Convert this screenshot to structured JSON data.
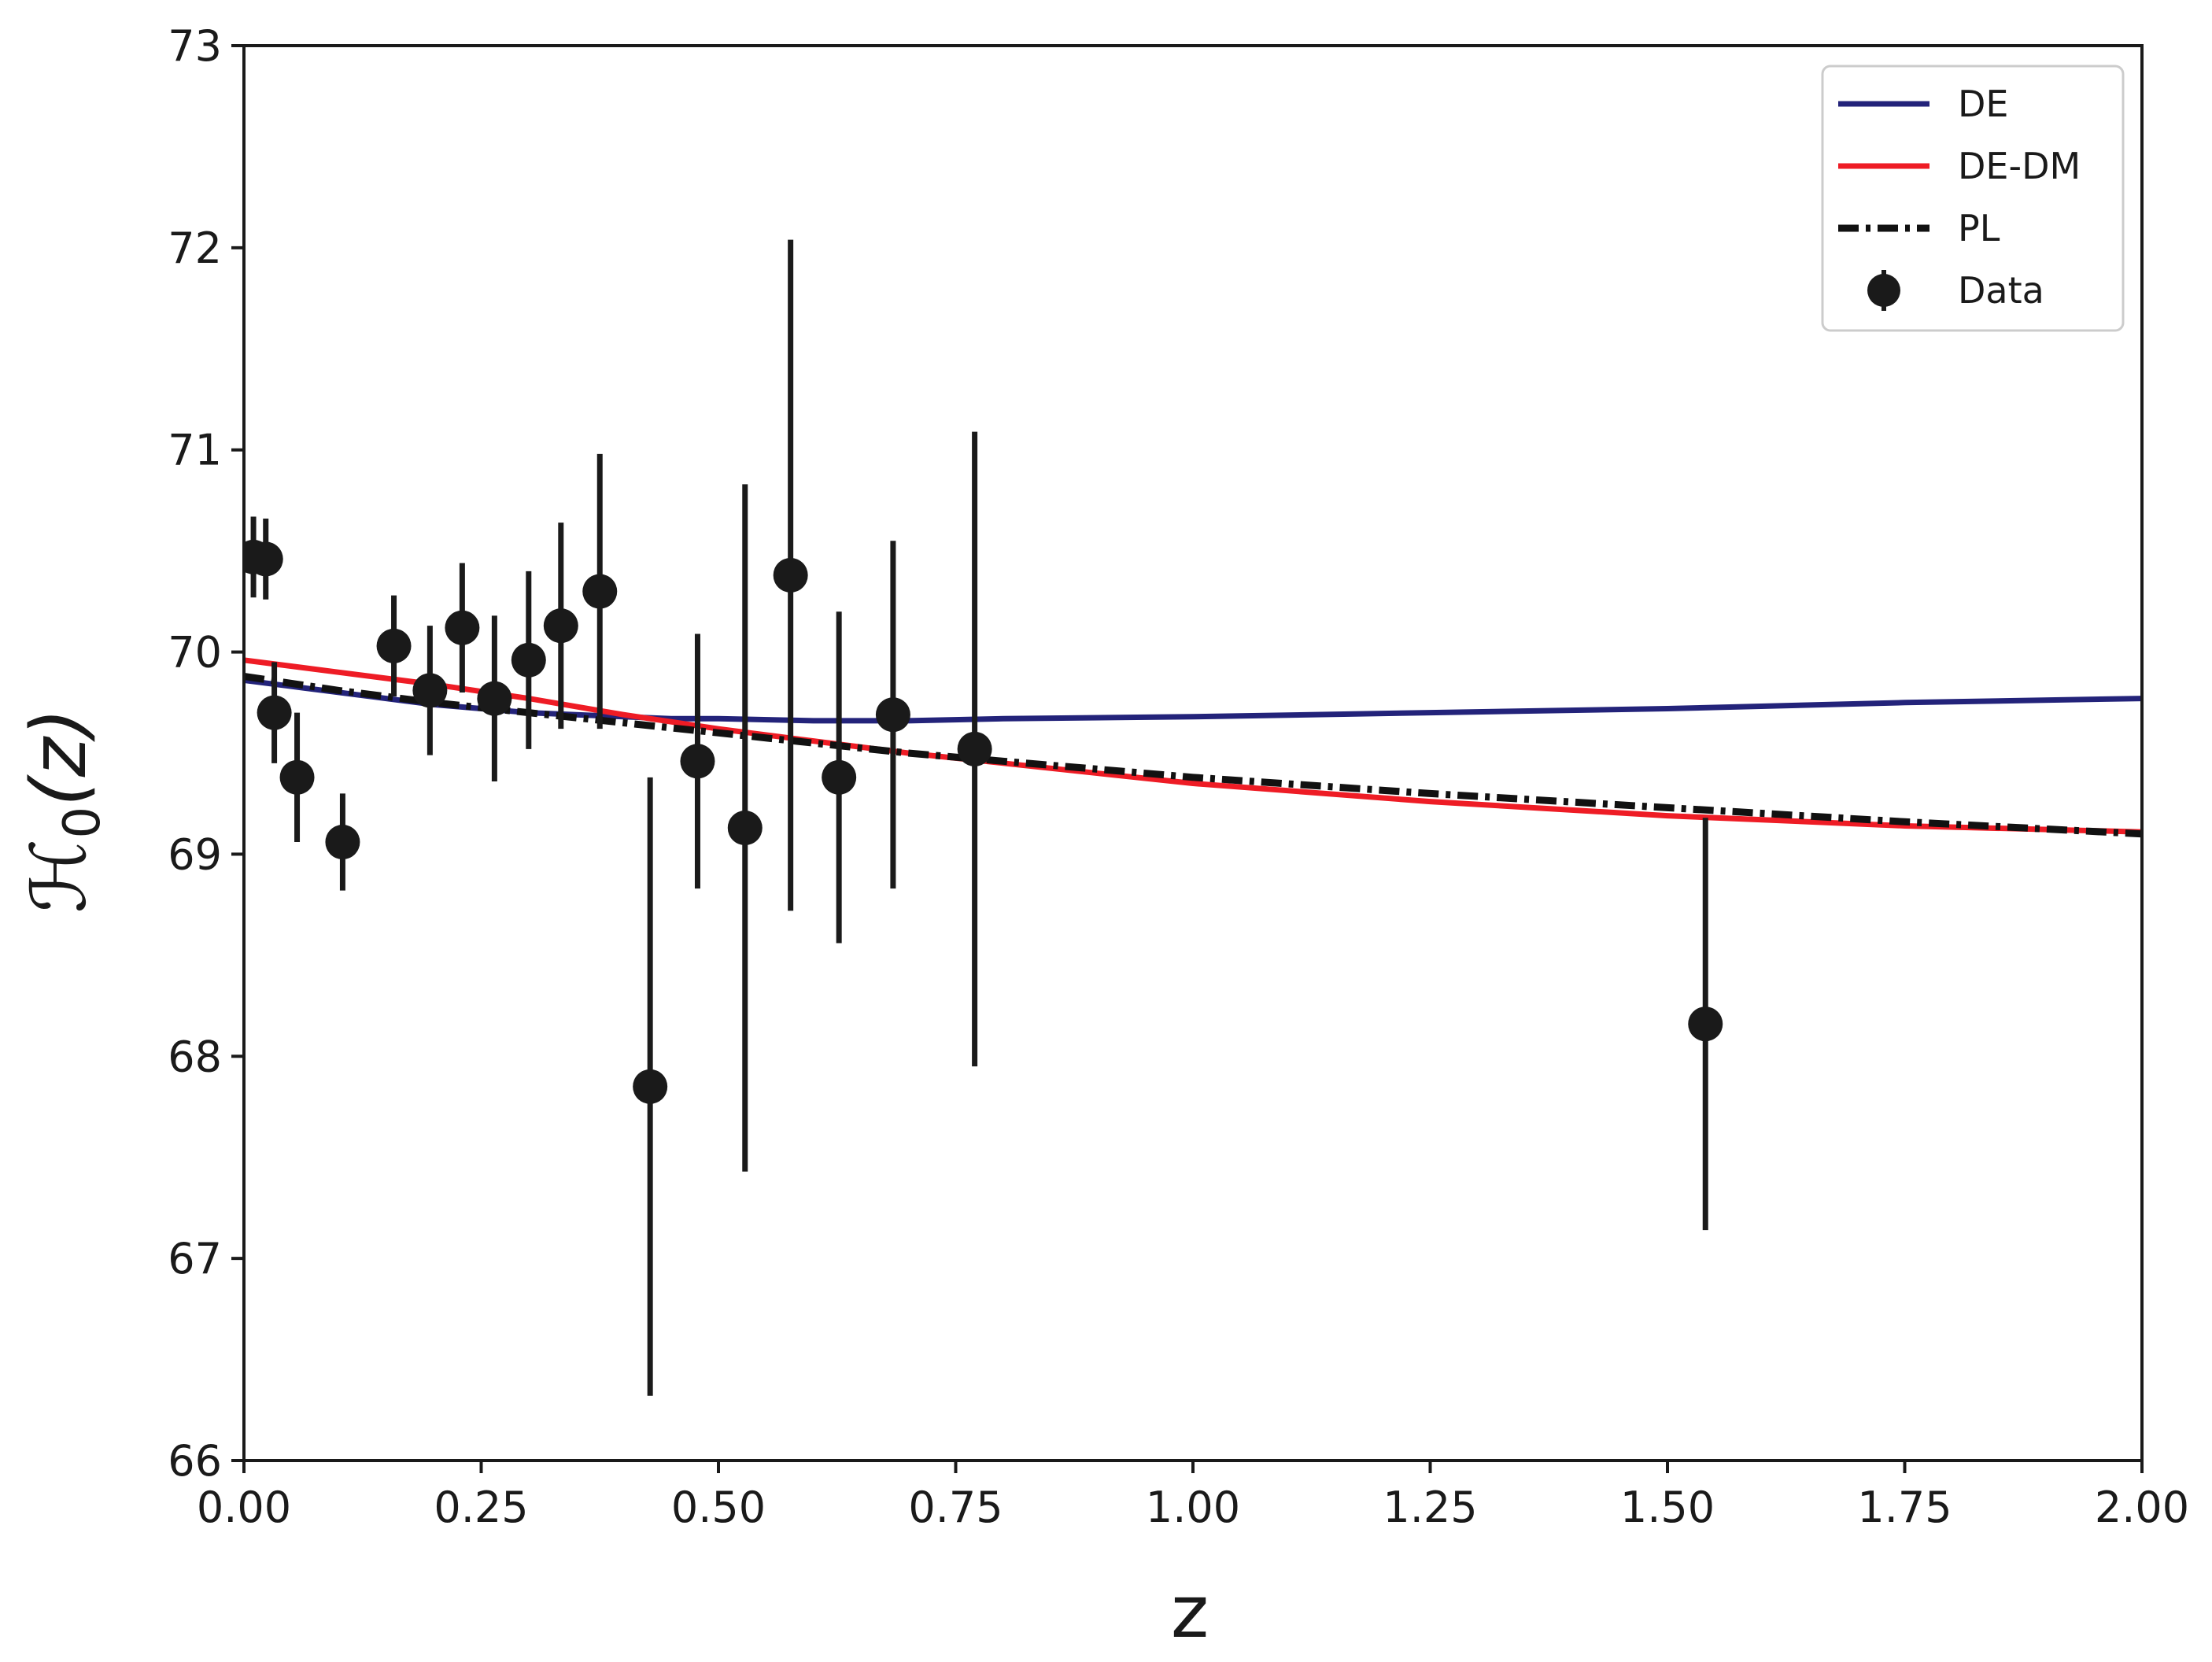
{
  "chart_data": {
    "type": "scatter",
    "title": "",
    "xlabel": "z",
    "ylabel": "ℋ",
    "ylabel_sub": "0",
    "ylabel_arg": "(z)",
    "xlim": [
      0.0,
      2.0
    ],
    "ylim": [
      66,
      73
    ],
    "xticks": [
      0.0,
      0.25,
      0.5,
      0.75,
      1.0,
      1.25,
      1.5,
      1.75,
      2.0
    ],
    "xtick_labels": [
      "0.00",
      "0.25",
      "0.50",
      "0.75",
      "1.00",
      "1.25",
      "1.50",
      "1.75",
      "2.00"
    ],
    "yticks": [
      66,
      67,
      68,
      69,
      70,
      71,
      72,
      73
    ],
    "ytick_labels": [
      "66",
      "67",
      "68",
      "69",
      "70",
      "71",
      "72",
      "73"
    ],
    "grid": false,
    "legend_position": "top-right",
    "series": [
      {
        "name": "DE",
        "kind": "line",
        "color": "#23237a",
        "x": [
          0.0,
          0.05,
          0.1,
          0.15,
          0.2,
          0.25,
          0.3,
          0.35,
          0.4,
          0.45,
          0.5,
          0.6,
          0.7,
          0.8,
          1.0,
          1.25,
          1.5,
          1.75,
          2.0
        ],
        "y": [
          69.86,
          69.83,
          69.8,
          69.77,
          69.74,
          69.72,
          69.7,
          69.69,
          69.68,
          69.67,
          69.67,
          69.66,
          69.66,
          69.67,
          69.68,
          69.7,
          69.72,
          69.75,
          69.77
        ]
      },
      {
        "name": "DE-DM",
        "kind": "line",
        "color": "#ee1c25",
        "x": [
          0.0,
          0.1,
          0.2,
          0.3,
          0.4,
          0.5,
          0.6,
          0.7,
          0.8,
          0.9,
          1.0,
          1.25,
          1.5,
          1.75,
          2.0
        ],
        "y": [
          69.96,
          69.9,
          69.84,
          69.77,
          69.69,
          69.62,
          69.56,
          69.5,
          69.45,
          69.4,
          69.35,
          69.26,
          69.19,
          69.14,
          69.11
        ]
      },
      {
        "name": "PL",
        "kind": "dashdot",
        "color": "#111111",
        "x": [
          0.0,
          0.1,
          0.2,
          0.3,
          0.4,
          0.5,
          0.6,
          0.7,
          0.8,
          0.9,
          1.0,
          1.25,
          1.5,
          1.75,
          2.0
        ],
        "y": [
          69.88,
          69.81,
          69.75,
          69.7,
          69.65,
          69.6,
          69.55,
          69.5,
          69.46,
          69.42,
          69.38,
          69.3,
          69.23,
          69.16,
          69.1
        ]
      },
      {
        "name": "Data",
        "kind": "errorbar",
        "color": "#1a1a1a",
        "points": [
          {
            "x": 0.01,
            "y": 70.47,
            "err": 0.2
          },
          {
            "x": 0.023,
            "y": 70.46,
            "err": 0.2
          },
          {
            "x": 0.032,
            "y": 69.7,
            "err": 0.25
          },
          {
            "x": 0.056,
            "y": 69.38,
            "err": 0.32
          },
          {
            "x": 0.104,
            "y": 69.06,
            "err": 0.24
          },
          {
            "x": 0.158,
            "y": 70.03,
            "err": 0.25
          },
          {
            "x": 0.196,
            "y": 69.81,
            "err": 0.32
          },
          {
            "x": 0.23,
            "y": 70.12,
            "err": 0.32
          },
          {
            "x": 0.264,
            "y": 69.77,
            "err": 0.41
          },
          {
            "x": 0.3,
            "y": 69.96,
            "err": 0.44
          },
          {
            "x": 0.334,
            "y": 70.13,
            "err": 0.51
          },
          {
            "x": 0.375,
            "y": 70.3,
            "err": 0.68
          },
          {
            "x": 0.428,
            "y": 67.85,
            "err": 1.53
          },
          {
            "x": 0.478,
            "y": 69.46,
            "err": 0.63
          },
          {
            "x": 0.528,
            "y": 69.13,
            "err": 1.7
          },
          {
            "x": 0.576,
            "y": 70.38,
            "err": 1.66
          },
          {
            "x": 0.627,
            "y": 69.38,
            "err": 0.82
          },
          {
            "x": 0.684,
            "y": 69.69,
            "err": 0.86
          },
          {
            "x": 0.77,
            "y": 69.52,
            "err": 1.57
          },
          {
            "x": 1.54,
            "y": 68.16,
            "err": 1.02
          }
        ]
      }
    ]
  }
}
